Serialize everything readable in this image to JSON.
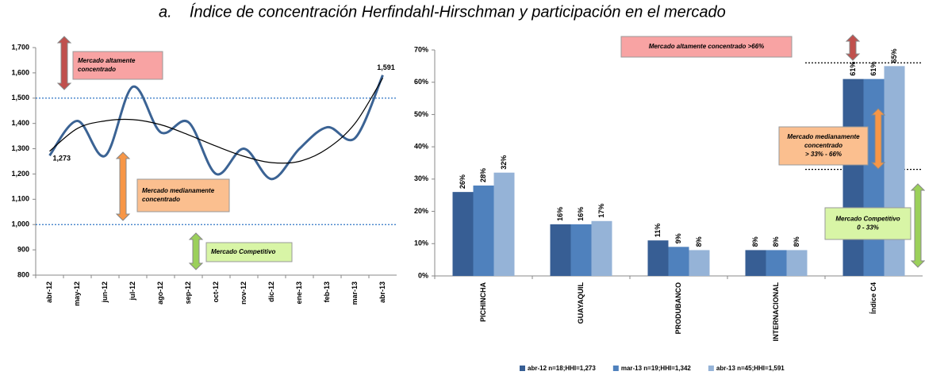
{
  "title": "a.    Índice de concentración Herfindahl-Hirschman y participación en el mercado",
  "chart_data": [
    {
      "type": "line",
      "categories": [
        "abr-12",
        "may-12",
        "jun-12",
        "jul-12",
        "ago-12",
        "sep-12",
        "oct-12",
        "nov-12",
        "dic-12",
        "ene-13",
        "feb-13",
        "mar-13",
        "abr-13"
      ],
      "series": [
        {
          "color": "#3b6394",
          "values": [
            1273,
            1410,
            1272,
            1545,
            1365,
            1405,
            1200,
            1300,
            1180,
            1300,
            1385,
            1342,
            1591
          ],
          "value_labels": [
            "1,273",
            null,
            null,
            null,
            null,
            null,
            null,
            null,
            null,
            null,
            null,
            null,
            "1,591"
          ]
        },
        {
          "color": "#000000",
          "values": [
            1290,
            1380,
            1410,
            1415,
            1395,
            1355,
            1310,
            1270,
            1245,
            1250,
            1300,
            1400,
            1580
          ]
        }
      ],
      "ylim": [
        800,
        1700
      ],
      "yticks": [
        800,
        900,
        {
          "value": 1000,
          "label": "1,000"
        },
        {
          "value": 1100,
          "label": "1,100"
        },
        {
          "value": 1200,
          "label": "1,200"
        },
        {
          "value": 1300,
          "label": "1,300"
        },
        {
          "value": 1400,
          "label": "1,400"
        },
        {
          "value": 1500,
          "label": "1,500"
        },
        {
          "value": 1600,
          "label": "1,600"
        },
        {
          "value": 1700,
          "label": "1,700"
        }
      ],
      "reference_lines": [
        1500,
        1000
      ],
      "annotations": [
        {
          "lines": [
            "Mercado altamente",
            "concentrado"
          ],
          "color": "#f8a3a3"
        },
        {
          "lines": [
            "Mercado medianamente",
            "concentrado"
          ],
          "color": "#fbbf8f"
        },
        {
          "lines": [
            "Mercado Competitivo"
          ],
          "color": "#d8f5a6"
        }
      ]
    },
    {
      "type": "bar",
      "categories": [
        "PICHINCHA",
        "GUAYAQUIL",
        "PRODUBANCO",
        "INTERNACIONAL",
        "Índice C4"
      ],
      "series": [
        {
          "name": "abr-12 n=18;HHI=1,273",
          "color": "#375e94",
          "values": [
            26,
            16,
            11,
            8,
            61
          ],
          "value_labels": [
            "26%",
            "16%",
            "11%",
            "8%",
            "61%"
          ]
        },
        {
          "name": "mar-13 n=19;HHI=1,342",
          "color": "#4f81bd",
          "values": [
            28,
            16,
            9,
            8,
            61
          ],
          "value_labels": [
            "28%",
            "16%",
            "9%",
            "8%",
            "61%"
          ]
        },
        {
          "name": "abr-13 n=45;HHI=1,591",
          "color": "#95b3d7",
          "values": [
            32,
            17,
            8,
            8,
            65
          ],
          "value_labels": [
            "32%",
            "17%",
            "8%",
            "8%",
            "65%"
          ]
        }
      ],
      "ylim": [
        0,
        70
      ],
      "yticks": [
        {
          "value": 0,
          "label": "0%"
        },
        {
          "value": 10,
          "label": "10%"
        },
        {
          "value": 20,
          "label": "20%"
        },
        {
          "value": 30,
          "label": "30%"
        },
        {
          "value": 40,
          "label": "40%"
        },
        {
          "value": 50,
          "label": "50%"
        },
        {
          "value": 60,
          "label": "60%"
        },
        {
          "value": 70,
          "label": "70%"
        }
      ],
      "reference_lines": [
        66,
        33
      ],
      "legend": "bottom",
      "annotations": [
        {
          "lines": [
            "Mercado altamente concentrado  >66%"
          ],
          "color": "#f8a3a3"
        },
        {
          "lines": [
            "Mercado medianamente",
            "concentrado",
            "> 33% - 66%"
          ],
          "color": "#fbbf8f"
        },
        {
          "lines": [
            "Mercado Competitivo",
            "0 - 33%"
          ],
          "color": "#d8f5a6"
        }
      ]
    }
  ]
}
